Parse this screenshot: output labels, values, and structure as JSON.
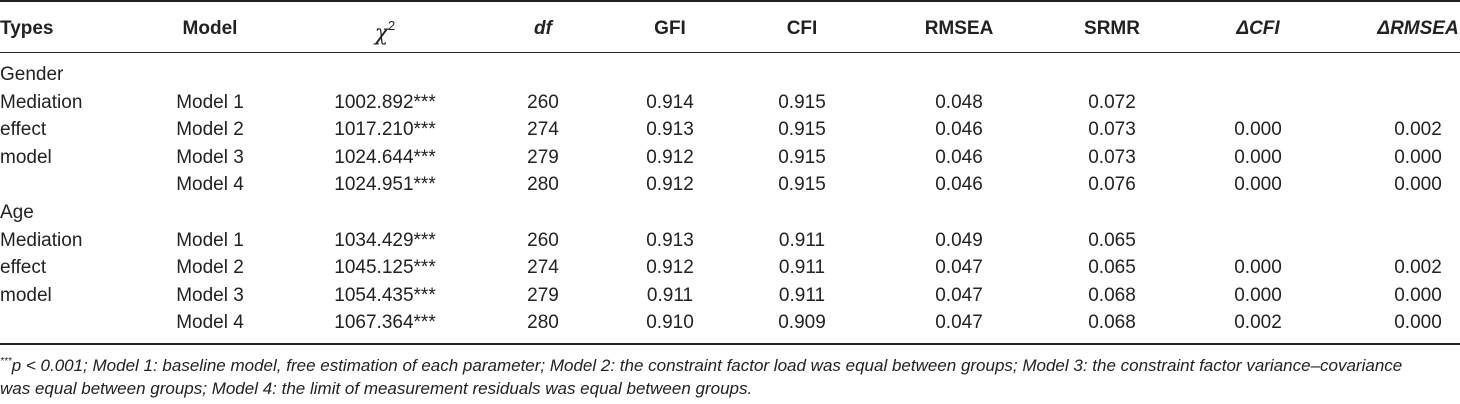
{
  "headers": {
    "types": "Types",
    "model": "Model",
    "chi_symbol": "χ",
    "chi_power": "2",
    "df": "df",
    "gfi": "GFI",
    "cfi": "CFI",
    "rmsea": "RMSEA",
    "srmr": "SRMR",
    "dcfi": "ΔCFI",
    "drmsea": "ΔRMSEA"
  },
  "groups": [
    {
      "group_label": "Gender",
      "type_lines": [
        "Mediation",
        "effect",
        "model"
      ],
      "rows": [
        {
          "model": "Model 1",
          "chi2": "1002.892***",
          "df": "260",
          "gfi": "0.914",
          "cfi": "0.915",
          "rmsea": "0.048",
          "srmr": "0.072",
          "dcfi": "",
          "drmsea": ""
        },
        {
          "model": "Model 2",
          "chi2": "1017.210***",
          "df": "274",
          "gfi": "0.913",
          "cfi": "0.915",
          "rmsea": "0.046",
          "srmr": "0.073",
          "dcfi": "0.000",
          "drmsea": "0.002"
        },
        {
          "model": "Model 3",
          "chi2": "1024.644***",
          "df": "279",
          "gfi": "0.912",
          "cfi": "0.915",
          "rmsea": "0.046",
          "srmr": "0.073",
          "dcfi": "0.000",
          "drmsea": "0.000"
        },
        {
          "model": "Model 4",
          "chi2": "1024.951***",
          "df": "280",
          "gfi": "0.912",
          "cfi": "0.915",
          "rmsea": "0.046",
          "srmr": "0.076",
          "dcfi": "0.000",
          "drmsea": "0.000"
        }
      ]
    },
    {
      "group_label": "Age",
      "type_lines": [
        "Mediation",
        "effect",
        "model"
      ],
      "rows": [
        {
          "model": "Model 1",
          "chi2": "1034.429***",
          "df": "260",
          "gfi": "0.913",
          "cfi": "0.911",
          "rmsea": "0.049",
          "srmr": "0.065",
          "dcfi": "",
          "drmsea": ""
        },
        {
          "model": "Model 2",
          "chi2": "1045.125***",
          "df": "274",
          "gfi": "0.912",
          "cfi": "0.911",
          "rmsea": "0.047",
          "srmr": "0.065",
          "dcfi": "0.000",
          "drmsea": "0.002"
        },
        {
          "model": "Model 3",
          "chi2": "1054.435***",
          "df": "279",
          "gfi": "0.911",
          "cfi": "0.911",
          "rmsea": "0.047",
          "srmr": "0.068",
          "dcfi": "0.000",
          "drmsea": "0.000"
        },
        {
          "model": "Model 4",
          "chi2": "1067.364***",
          "df": "280",
          "gfi": "0.910",
          "cfi": "0.909",
          "rmsea": "0.047",
          "srmr": "0.068",
          "dcfi": "0.002",
          "drmsea": "0.000"
        }
      ]
    }
  ],
  "footnote": {
    "marker": "***",
    "line1": "p < 0.001; Model 1: baseline model, free estimation of each parameter; Model 2: the constraint factor load was equal between groups; Model 3: the constraint factor variance–covariance",
    "line2": "was equal between groups; Model 4: the limit of measurement residuals was equal between groups."
  }
}
